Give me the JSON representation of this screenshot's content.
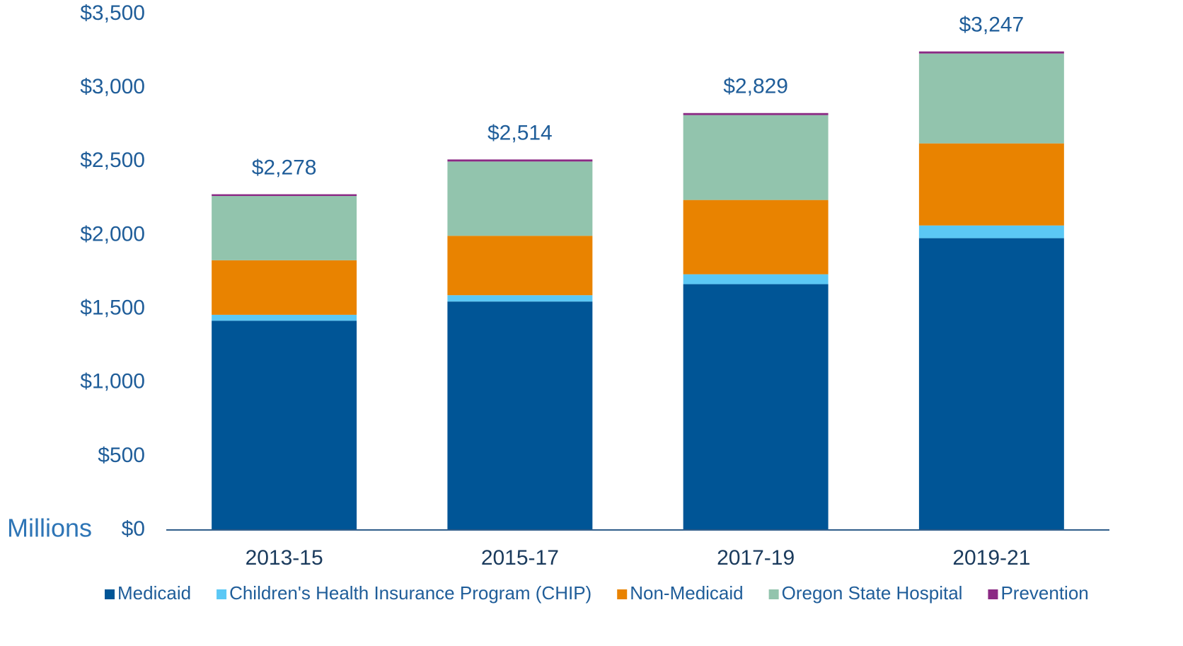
{
  "chart_data": {
    "type": "stacked_bar",
    "y_label": "Millions",
    "categories": [
      "2013-15",
      "2015-17",
      "2017-19",
      "2019-21"
    ],
    "series": [
      {
        "name": "Medicaid",
        "color": "#005596",
        "values": [
          1420,
          1550,
          1668,
          1980
        ]
      },
      {
        "name": "Children's Health Insurance Program (CHIP)",
        "color": "#5bc8f5",
        "values": [
          40,
          43,
          67,
          86
        ]
      },
      {
        "name": "Non-Medicaid",
        "color": "#e98300",
        "values": [
          370,
          403,
          504,
          557
        ]
      },
      {
        "name": "Oregon State Hospital",
        "color": "#92c4ad",
        "values": [
          436,
          504,
          576,
          610
        ]
      },
      {
        "name": "Prevention",
        "color": "#8b2a84",
        "values": [
          12,
          14,
          14,
          14
        ]
      }
    ],
    "totals": {
      "values": [
        2278,
        2514,
        2829,
        3247
      ],
      "value_labels": [
        "$2,278",
        "$2,514",
        "$2,829",
        "$3,247"
      ]
    },
    "ylim": [
      0,
      3500
    ],
    "yticks": [
      {
        "value": 0,
        "label": "$0"
      },
      {
        "value": 500,
        "label": "$500"
      },
      {
        "value": 1000,
        "label": "$1,000"
      },
      {
        "value": 1500,
        "label": "$1,500"
      },
      {
        "value": 2000,
        "label": "$2,000"
      },
      {
        "value": 2500,
        "label": "$2,500"
      },
      {
        "value": 3000,
        "label": "$3,000"
      },
      {
        "value": 3500,
        "label": "$3,500"
      }
    ],
    "grid": false,
    "legend": "bottom"
  }
}
